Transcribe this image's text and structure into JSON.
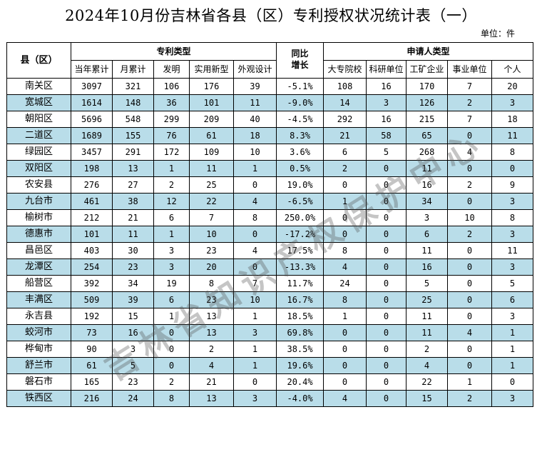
{
  "title": "2024年10月份吉林省各县（区）专利授权状况统计表（一）",
  "unit": "单位：件",
  "header": {
    "county": "县（区）",
    "patent_type": "专利类型",
    "yoy": "同比增长",
    "applicant_type": "申请人类型",
    "cols": [
      "当年累计",
      "月累计",
      "发明",
      "实用新型",
      "外观设计"
    ],
    "applicant_cols": [
      "大专院校",
      "科研单位",
      "工矿企业",
      "事业单位",
      "个人"
    ]
  },
  "rows": [
    {
      "name": "南关区",
      "year": "3097",
      "month": "321",
      "invention": "106",
      "utility": "176",
      "design": "39",
      "yoy": "-5.1%",
      "univ": "108",
      "research": "16",
      "industry": "170",
      "inst": "7",
      "individual": "20"
    },
    {
      "name": "宽城区",
      "year": "1614",
      "month": "148",
      "invention": "36",
      "utility": "101",
      "design": "11",
      "yoy": "-9.0%",
      "univ": "14",
      "research": "3",
      "industry": "126",
      "inst": "2",
      "individual": "3"
    },
    {
      "name": "朝阳区",
      "year": "5696",
      "month": "548",
      "invention": "299",
      "utility": "209",
      "design": "40",
      "yoy": "-4.5%",
      "univ": "292",
      "research": "16",
      "industry": "215",
      "inst": "7",
      "individual": "18"
    },
    {
      "name": "二道区",
      "year": "1689",
      "month": "155",
      "invention": "76",
      "utility": "61",
      "design": "18",
      "yoy": "8.3%",
      "univ": "21",
      "research": "58",
      "industry": "65",
      "inst": "0",
      "individual": "11"
    },
    {
      "name": "绿园区",
      "year": "3457",
      "month": "291",
      "invention": "172",
      "utility": "109",
      "design": "10",
      "yoy": "3.6%",
      "univ": "6",
      "research": "5",
      "industry": "268",
      "inst": "4",
      "individual": "8"
    },
    {
      "name": "双阳区",
      "year": "198",
      "month": "13",
      "invention": "1",
      "utility": "11",
      "design": "1",
      "yoy": "0.5%",
      "univ": "2",
      "research": "0",
      "industry": "11",
      "inst": "0",
      "individual": "0"
    },
    {
      "name": "农安县",
      "year": "276",
      "month": "27",
      "invention": "2",
      "utility": "25",
      "design": "0",
      "yoy": "19.0%",
      "univ": "0",
      "research": "0",
      "industry": "16",
      "inst": "2",
      "individual": "9"
    },
    {
      "name": "九台市",
      "year": "461",
      "month": "38",
      "invention": "12",
      "utility": "22",
      "design": "4",
      "yoy": "-6.5%",
      "univ": "1",
      "research": "0",
      "industry": "34",
      "inst": "0",
      "individual": "3"
    },
    {
      "name": "榆树市",
      "year": "212",
      "month": "21",
      "invention": "6",
      "utility": "7",
      "design": "8",
      "yoy": "250.0%",
      "univ": "0",
      "research": "0",
      "industry": "3",
      "inst": "10",
      "individual": "8"
    },
    {
      "name": "德惠市",
      "year": "101",
      "month": "11",
      "invention": "1",
      "utility": "10",
      "design": "0",
      "yoy": "-17.2%",
      "univ": "0",
      "research": "0",
      "industry": "6",
      "inst": "2",
      "individual": "3"
    },
    {
      "name": "昌邑区",
      "year": "403",
      "month": "30",
      "invention": "3",
      "utility": "23",
      "design": "4",
      "yoy": "17.5%",
      "univ": "8",
      "research": "0",
      "industry": "11",
      "inst": "0",
      "individual": "11"
    },
    {
      "name": "龙潭区",
      "year": "254",
      "month": "23",
      "invention": "3",
      "utility": "20",
      "design": "0",
      "yoy": "-13.3%",
      "univ": "4",
      "research": "0",
      "industry": "16",
      "inst": "0",
      "individual": "3"
    },
    {
      "name": "船营区",
      "year": "392",
      "month": "34",
      "invention": "19",
      "utility": "8",
      "design": "7",
      "yoy": "11.7%",
      "univ": "24",
      "research": "0",
      "industry": "5",
      "inst": "0",
      "individual": "5"
    },
    {
      "name": "丰满区",
      "year": "509",
      "month": "39",
      "invention": "6",
      "utility": "23",
      "design": "10",
      "yoy": "16.7%",
      "univ": "8",
      "research": "0",
      "industry": "25",
      "inst": "0",
      "individual": "6"
    },
    {
      "name": "永吉县",
      "year": "192",
      "month": "15",
      "invention": "1",
      "utility": "13",
      "design": "1",
      "yoy": "18.5%",
      "univ": "1",
      "research": "0",
      "industry": "11",
      "inst": "0",
      "individual": "3"
    },
    {
      "name": "蛟河市",
      "year": "73",
      "month": "16",
      "invention": "0",
      "utility": "13",
      "design": "3",
      "yoy": "69.8%",
      "univ": "0",
      "research": "0",
      "industry": "11",
      "inst": "4",
      "individual": "1"
    },
    {
      "name": "桦甸市",
      "year": "90",
      "month": "3",
      "invention": "0",
      "utility": "2",
      "design": "1",
      "yoy": "38.5%",
      "univ": "0",
      "research": "0",
      "industry": "2",
      "inst": "0",
      "individual": "1"
    },
    {
      "name": "舒兰市",
      "year": "61",
      "month": "5",
      "invention": "0",
      "utility": "4",
      "design": "1",
      "yoy": "19.6%",
      "univ": "0",
      "research": "0",
      "industry": "4",
      "inst": "0",
      "individual": "1"
    },
    {
      "name": "磐石市",
      "year": "165",
      "month": "23",
      "invention": "2",
      "utility": "21",
      "design": "0",
      "yoy": "20.4%",
      "univ": "0",
      "research": "0",
      "industry": "22",
      "inst": "1",
      "individual": "0"
    },
    {
      "name": "铁西区",
      "year": "216",
      "month": "24",
      "invention": "8",
      "utility": "13",
      "design": "3",
      "yoy": "-4.0%",
      "univ": "4",
      "research": "0",
      "industry": "15",
      "inst": "2",
      "individual": "3"
    }
  ],
  "watermark": "吉林省知识产权保护中心"
}
